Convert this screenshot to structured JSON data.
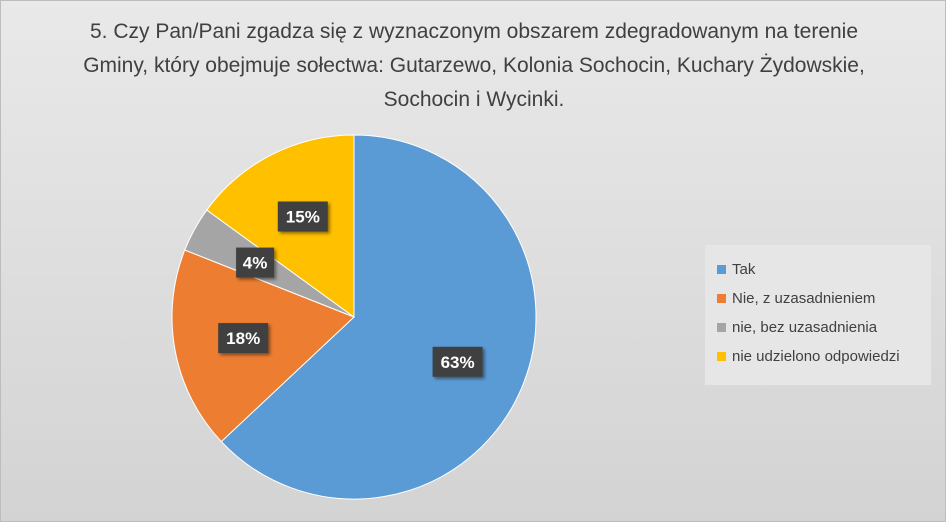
{
  "chart_data": {
    "type": "pie",
    "title": "5. Czy Pan/Pani zgadza się z wyznaczonym obszarem zdegradowanym na terenie Gminy, który obejmuje sołectwa: Gutarzewo, Kolonia Sochocin, Kuchary Żydowskie, Sochocin i Wycinki.",
    "categories": [
      "Tak",
      "Nie, z uzasadnieniem",
      "nie, bez uzasadnienia",
      "nie udzielono odpowiedzi"
    ],
    "values": [
      63,
      18,
      4,
      15
    ],
    "labels": [
      "63%",
      "18%",
      "4%",
      "15%"
    ],
    "colors": [
      "#5b9bd5",
      "#ed7d31",
      "#a5a5a5",
      "#ffc000"
    ],
    "legend_position": "right",
    "start_angle_deg": 0,
    "direction": "clockwise"
  }
}
